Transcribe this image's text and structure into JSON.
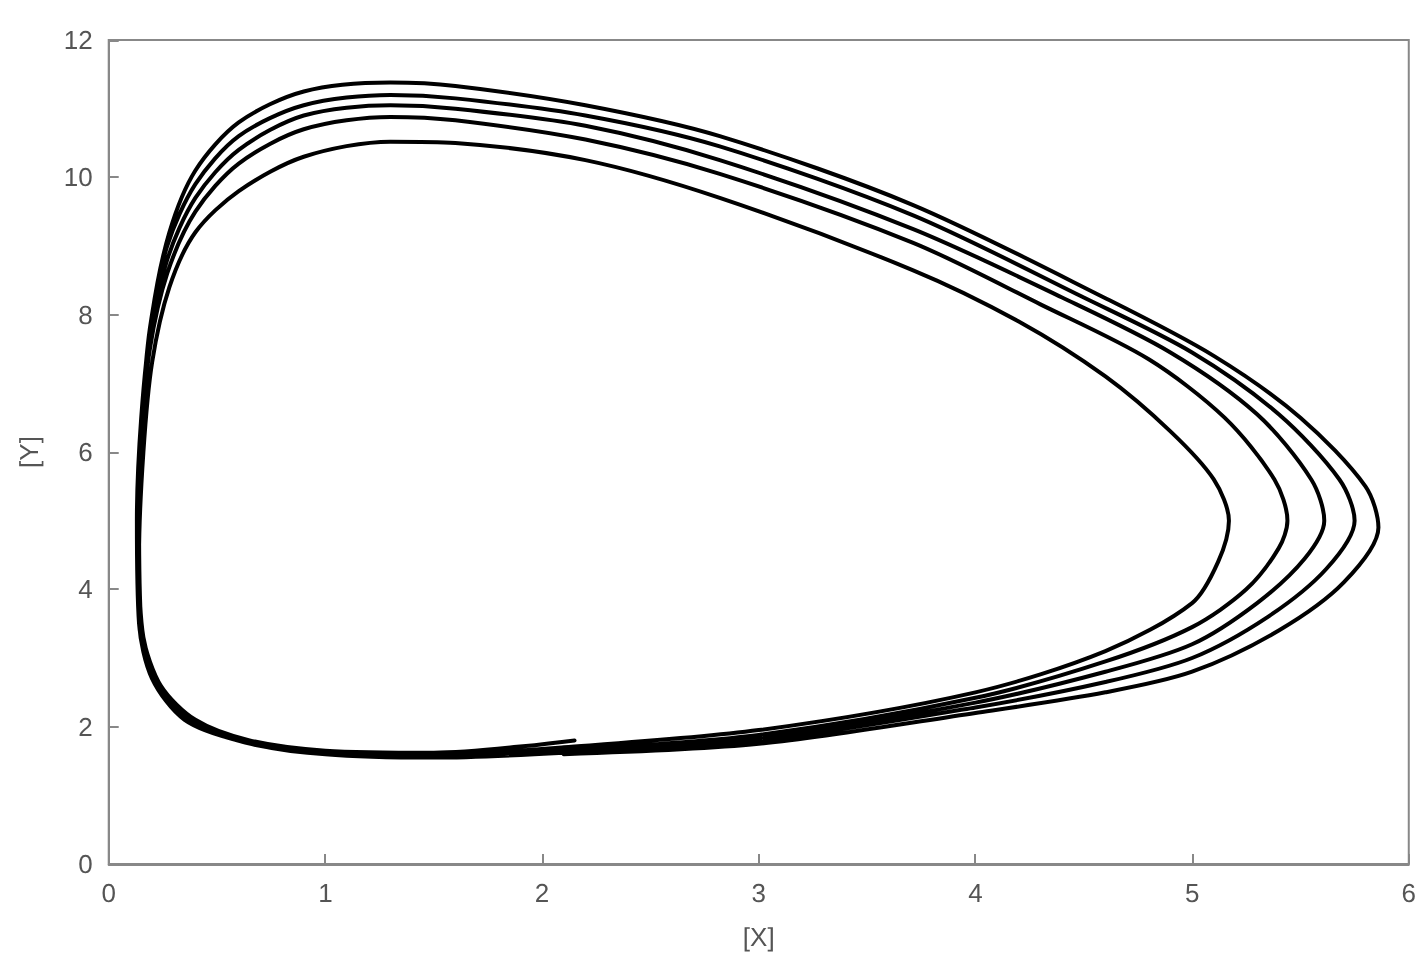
{
  "chart_data": {
    "type": "line",
    "xlabel": "[X]",
    "ylabel": "[Y]",
    "xlim": [
      0,
      6
    ],
    "ylim": [
      0,
      12
    ],
    "xticks": [
      0,
      1,
      2,
      3,
      4,
      5,
      6
    ],
    "yticks": [
      0,
      2,
      4,
      6,
      8,
      10,
      12
    ],
    "grid": false,
    "marker": "none",
    "line_style": "solid",
    "series": [
      {
        "color": "#000000",
        "x": [
          2.1,
          3,
          4,
          4.6,
          5,
          5.4,
          5.7,
          5.86,
          5.8,
          5.5,
          5.1,
          4.6,
          3.71,
          2.82,
          2.2,
          1.6,
          1.3,
          0.9,
          0.6,
          0.4,
          0.28,
          0.2,
          0.15,
          0.13,
          0.14,
          0.2,
          0.35,
          0.6,
          1,
          1.5,
          2.1,
          3,
          4,
          4.6,
          5,
          5.35,
          5.62,
          5.75,
          5.68,
          5.4,
          5.0,
          4.5,
          3.71,
          2.82,
          2.2,
          1.6,
          1.3,
          0.9,
          0.6,
          0.4,
          0.27,
          0.19,
          0.15,
          0.13,
          0.14,
          0.21,
          0.36,
          0.62,
          1,
          1.5,
          2.1,
          3,
          4,
          4.6,
          5,
          5.3,
          5.52,
          5.61,
          5.55,
          5.3,
          4.9,
          4.4,
          3.71,
          2.82,
          2.2,
          1.6,
          1.3,
          0.9,
          0.6,
          0.4,
          0.27,
          0.19,
          0.15,
          0.13,
          0.15,
          0.22,
          0.37,
          0.63,
          1,
          1.5,
          2.1,
          3,
          4,
          4.6,
          5,
          5.25,
          5.4,
          5.44,
          5.38,
          5.15,
          4.8,
          4.3,
          3.71,
          2.82,
          2.2,
          1.6,
          1.3,
          0.9,
          0.6,
          0.4,
          0.27,
          0.19,
          0.15,
          0.14,
          0.15,
          0.23,
          0.38,
          0.64,
          1,
          1.5,
          2.1,
          3,
          4,
          4.6,
          5,
          5.12,
          5.17,
          5.1,
          4.9,
          4.6,
          4.2,
          3.71,
          2.82,
          2.2,
          1.6,
          1.3,
          0.9,
          0.6,
          0.4,
          0.28,
          0.2,
          0.16,
          0.14,
          0.16,
          0.24,
          0.4,
          0.65,
          1,
          1.5,
          2.15
        ],
        "values": [
          1.6,
          1.75,
          2.2,
          2.5,
          2.8,
          3.4,
          4.1,
          4.9,
          5.5,
          6.5,
          7.4,
          8.24,
          9.6,
          10.6,
          11.05,
          11.33,
          11.38,
          11.25,
          10.8,
          10.1,
          9.2,
          8,
          6.5,
          5,
          3.5,
          2.7,
          2.1,
          1.8,
          1.6,
          1.55,
          1.62,
          1.8,
          2.28,
          2.65,
          3.0,
          3.6,
          4.3,
          5.0,
          5.6,
          6.55,
          7.45,
          8.25,
          9.45,
          10.45,
          10.9,
          11.15,
          11.2,
          11.05,
          10.6,
          9.9,
          9.0,
          7.8,
          6.4,
          5,
          3.5,
          2.7,
          2.1,
          1.78,
          1.6,
          1.57,
          1.64,
          1.84,
          2.35,
          2.8,
          3.2,
          3.8,
          4.45,
          5.0,
          5.6,
          6.55,
          7.45,
          8.25,
          9.25,
          10.25,
          10.75,
          11.0,
          11.05,
          10.9,
          10.4,
          9.7,
          8.8,
          7.6,
          6.3,
          5,
          3.5,
          2.65,
          2.1,
          1.77,
          1.6,
          1.58,
          1.66,
          1.88,
          2.42,
          2.95,
          3.45,
          4.0,
          4.6,
          5.0,
          5.6,
          6.5,
          7.35,
          8.15,
          9.05,
          10.05,
          10.55,
          10.83,
          10.88,
          10.7,
          10.2,
          9.5,
          8.6,
          7.5,
          6.2,
          5,
          3.5,
          2.65,
          2.1,
          1.76,
          1.62,
          1.6,
          1.7,
          1.95,
          2.5,
          3.1,
          3.8,
          4.4,
          5.0,
          5.6,
          6.3,
          7.1,
          7.9,
          8.65,
          9.7,
          10.25,
          10.5,
          10.52,
          10.3,
          9.8,
          9.2,
          8.4,
          7.3,
          6,
          4.5,
          3.3,
          2.6,
          2.1,
          1.8,
          1.65,
          1.62,
          1.8
        ]
      }
    ]
  }
}
